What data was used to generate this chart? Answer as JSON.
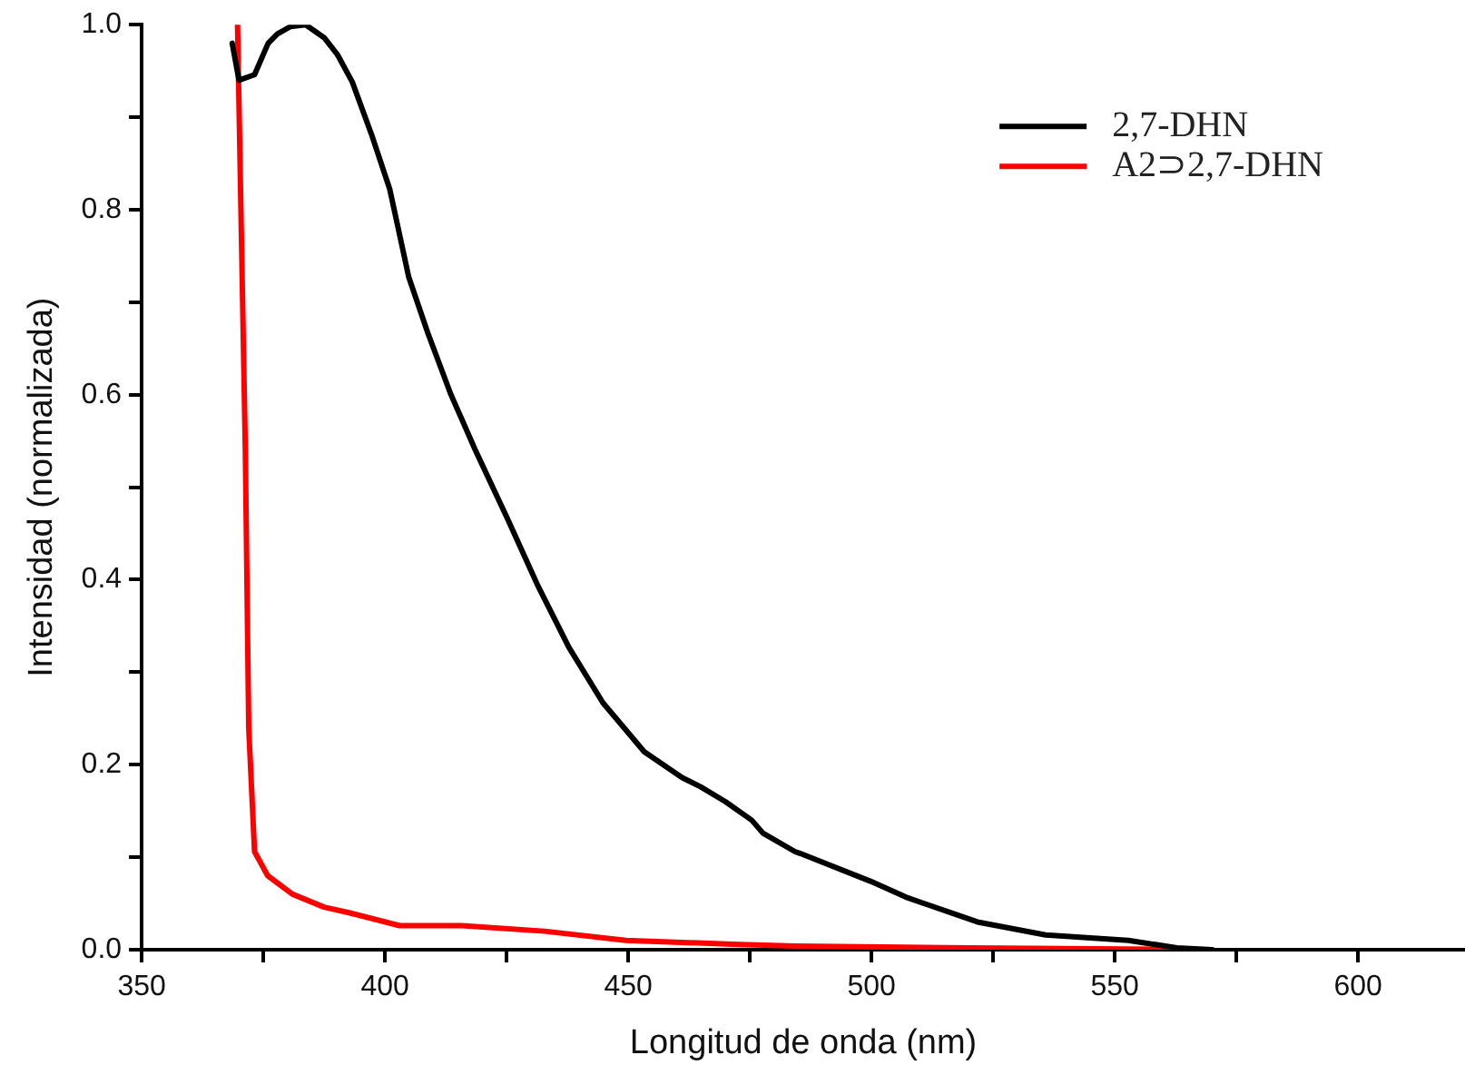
{
  "chart_data": {
    "type": "line",
    "xlabel": "Longitud de onda (nm)",
    "ylabel": "Intensidad (normalizada)",
    "xlim": [
      350,
      622
    ],
    "ylim": [
      0,
      1
    ],
    "xticks": [
      350,
      {
        "value": 375,
        "label": null
      },
      400,
      {
        "value": 425,
        "label": null
      },
      450,
      {
        "value": 475,
        "label": null
      },
      500,
      {
        "value": 525,
        "label": null
      },
      550,
      {
        "value": 575,
        "label": null
      },
      600
    ],
    "yticks": [
      {
        "value": 0,
        "label": "0.0"
      },
      {
        "value": 0.1,
        "label": null
      },
      0.2,
      {
        "value": 0.3,
        "label": null
      },
      0.4,
      {
        "value": 0.5,
        "label": null
      },
      0.6,
      {
        "value": 0.7,
        "label": null
      },
      0.8,
      {
        "value": 0.9,
        "label": null
      },
      {
        "value": 1,
        "label": "1.0"
      }
    ],
    "grid": false,
    "legend": "top right",
    "marker": "none",
    "line_style": "solid",
    "series": [
      {
        "name": "2,7-DHN",
        "color": "#000000",
        "x": [
          368.6,
          370,
          373.2,
          376,
          377.9,
          380.6,
          383.7,
          387.5,
          390.2,
          393.3,
          397.2,
          401,
          404.9,
          408.8,
          413.5,
          418.5,
          425.1,
          431.3,
          437.8,
          444.8,
          453.3,
          461.1,
          464.9,
          470,
          475.4,
          477.7,
          484.3,
          485.4,
          499.8,
          507.5,
          521.8,
          535.8,
          552.8,
          562.8,
          570
        ],
        "values": [
          0.98,
          0.94,
          0.946,
          0.98,
          0.99,
          0.998,
          1.0,
          0.986,
          0.968,
          0.938,
          0.882,
          0.822,
          0.727,
          0.667,
          0.601,
          0.541,
          0.467,
          0.395,
          0.327,
          0.267,
          0.214,
          0.186,
          0.176,
          0.16,
          0.14,
          0.126,
          0.106,
          0.104,
          0.074,
          0.056,
          0.03,
          0.016,
          0.01,
          0.002,
          0.0
        ]
      },
      {
        "name": "A2⊃2,7-DHN",
        "color": "#ff0000",
        "x": [
          369.7,
          371.3,
          372,
          373.2,
          375.9,
          381,
          387.5,
          392.6,
          403,
          415.8,
          432.8,
          449.5,
          471.5,
          484.3,
          520,
          570
        ],
        "values": [
          1.0,
          0.541,
          0.24,
          0.106,
          0.08,
          0.06,
          0.046,
          0.04,
          0.026,
          0.026,
          0.02,
          0.01,
          0.006,
          0.004,
          0.002,
          0.0
        ]
      }
    ]
  }
}
